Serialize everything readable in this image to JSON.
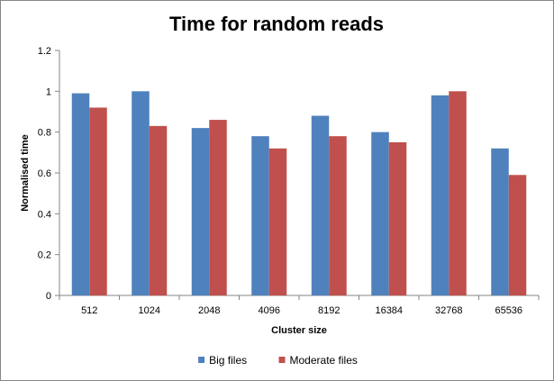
{
  "chart_data": {
    "type": "bar",
    "title": "Time for random reads",
    "xlabel": "Cluster size",
    "ylabel": "Normalised time",
    "categories": [
      "512",
      "1024",
      "2048",
      "4096",
      "8192",
      "16384",
      "32768",
      "65536"
    ],
    "series": [
      {
        "name": "Big files",
        "color": "#4F81BD",
        "values": [
          0.99,
          1.0,
          0.82,
          0.78,
          0.88,
          0.8,
          0.98,
          0.72
        ]
      },
      {
        "name": "Moderate files",
        "color": "#C0504D",
        "values": [
          0.92,
          0.83,
          0.86,
          0.72,
          0.78,
          0.75,
          1.0,
          0.59
        ]
      }
    ],
    "ylim": [
      0,
      1.2
    ],
    "yticks": [
      "0",
      "0.2",
      "0.4",
      "0.6",
      "0.8",
      "1",
      "1.2"
    ],
    "grid": false,
    "legend_position": "bottom"
  }
}
